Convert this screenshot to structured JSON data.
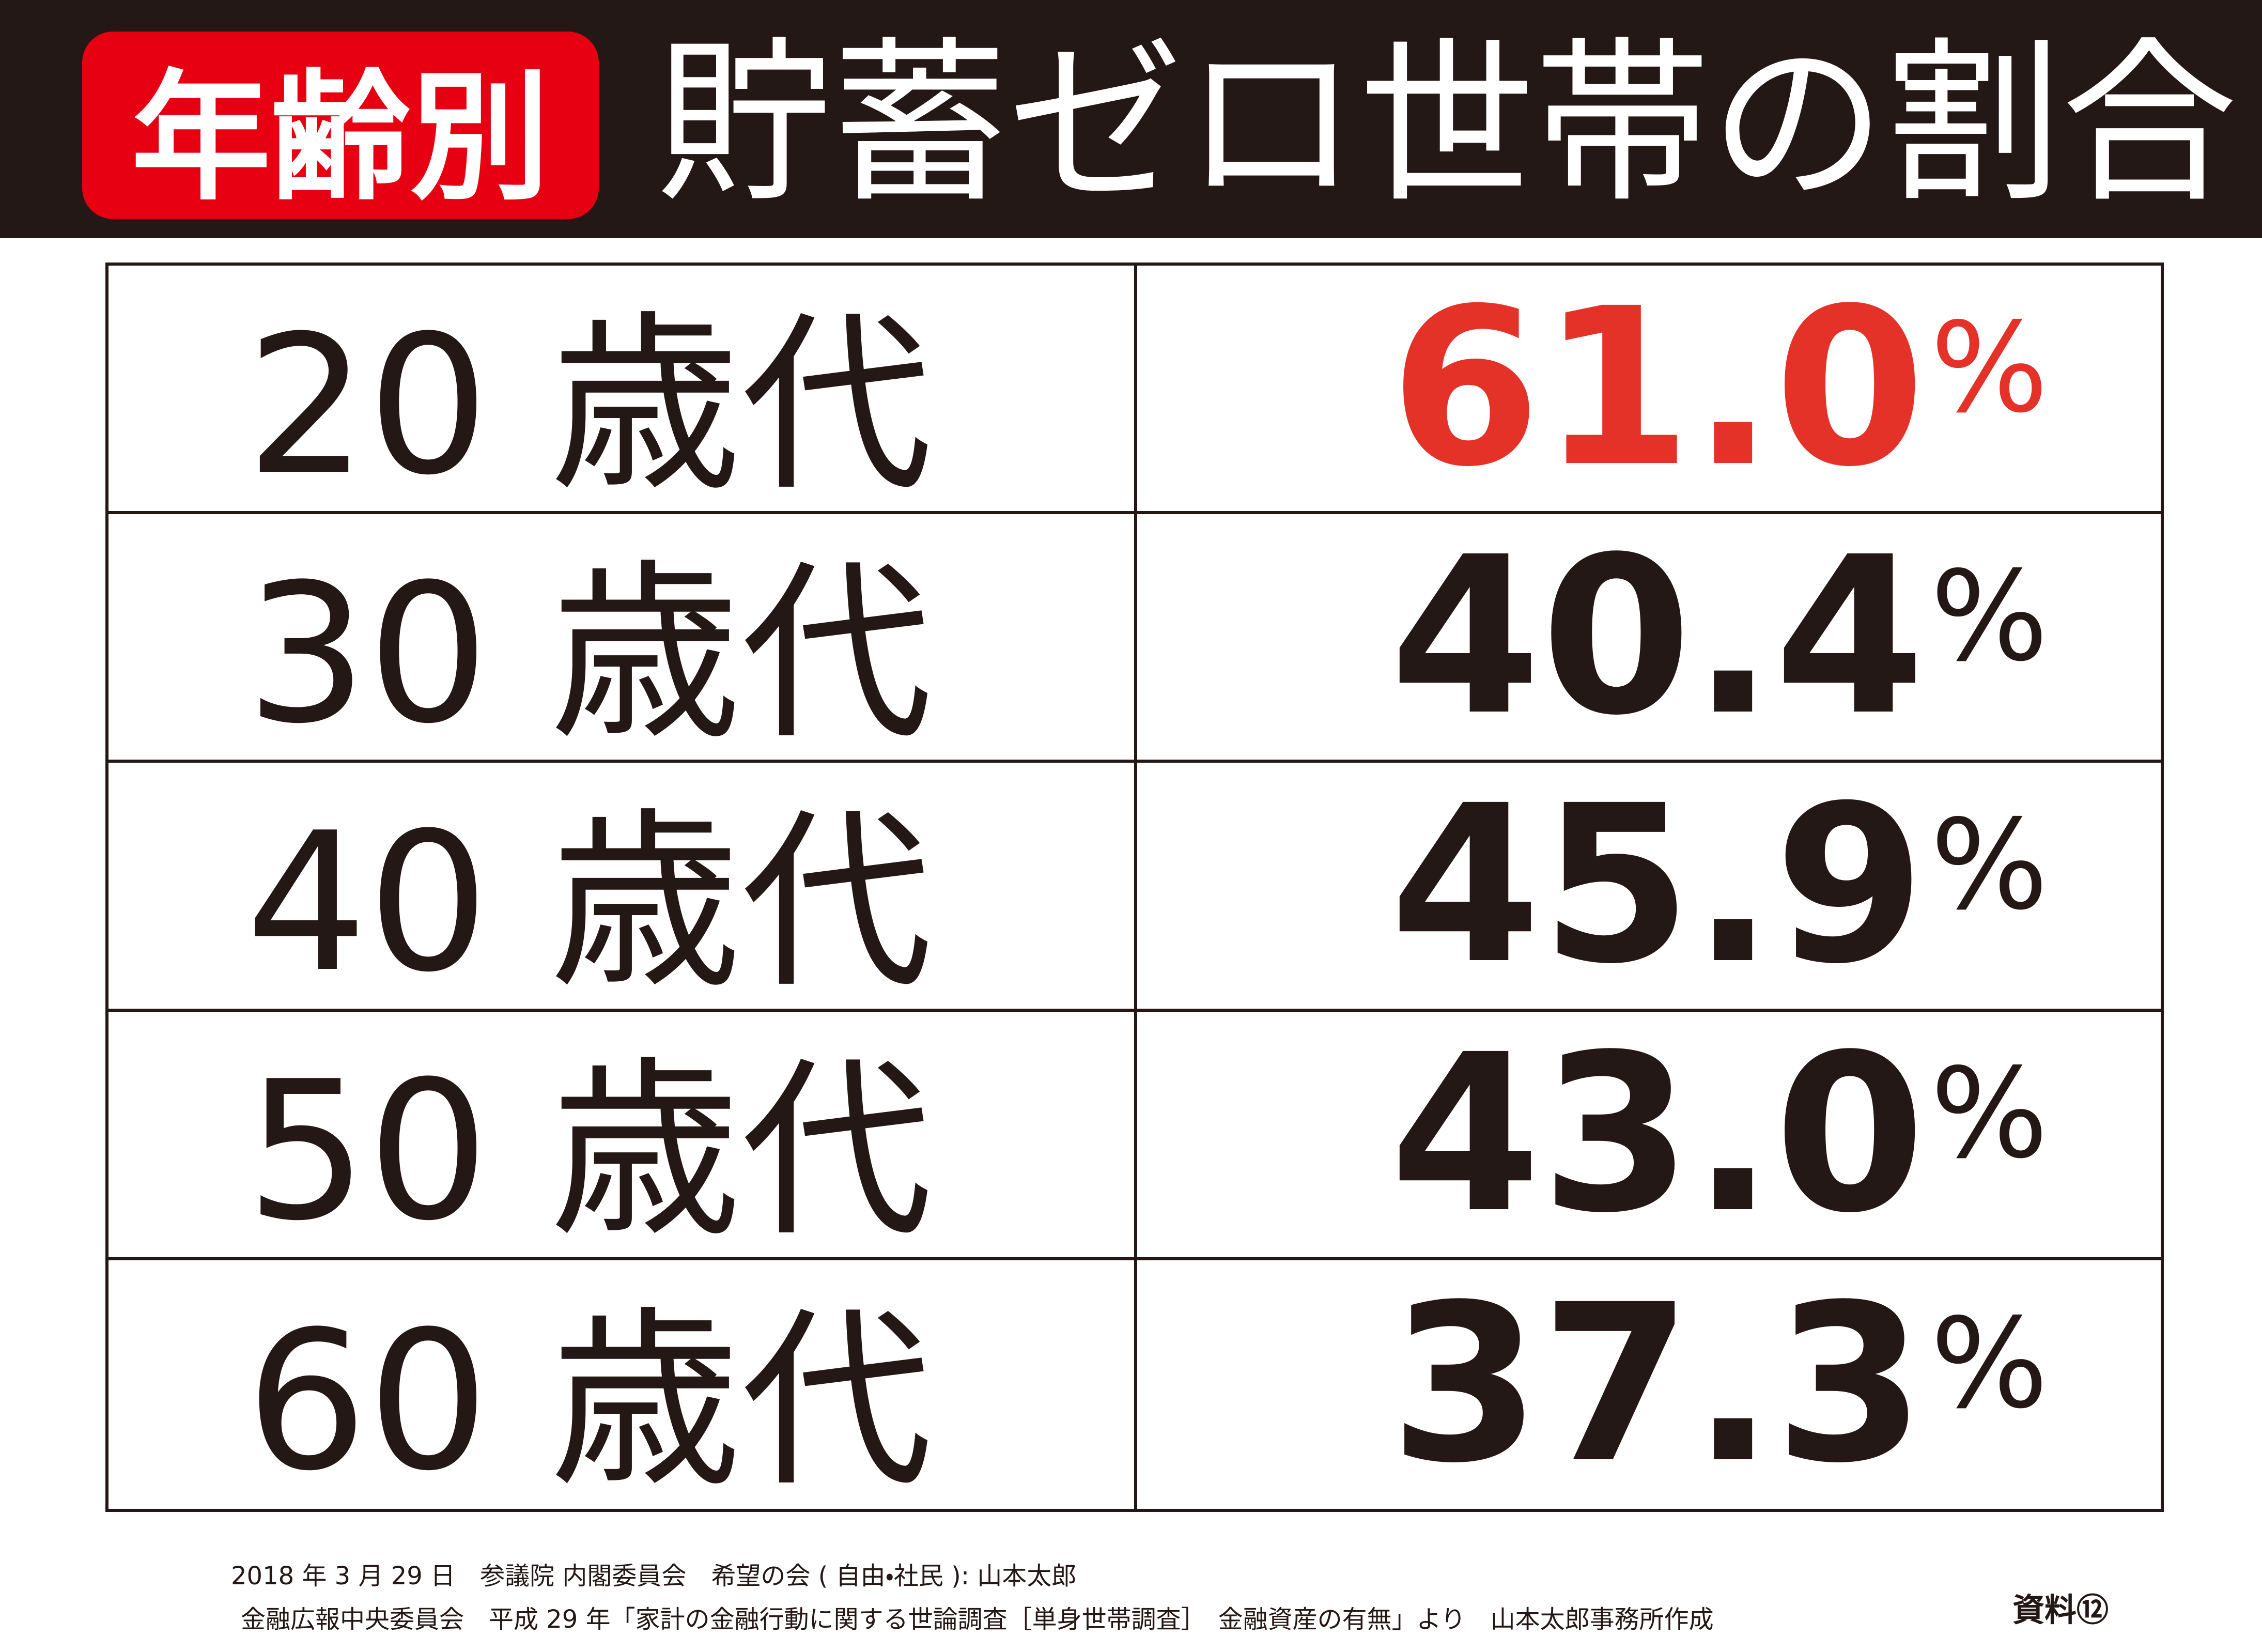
{
  "header": {
    "badge": "年齢別",
    "title": "貯蓄ゼロ世帯の割合"
  },
  "table": {
    "rows": [
      {
        "age": "20 歳代",
        "value": "61.0",
        "unit": "%"
      },
      {
        "age": "30 歳代",
        "value": "40.4",
        "unit": "%"
      },
      {
        "age": "40 歳代",
        "value": "45.9",
        "unit": "%"
      },
      {
        "age": "50 歳代",
        "value": "43.0",
        "unit": "%"
      },
      {
        "age": "60 歳代",
        "value": "37.3",
        "unit": "%"
      }
    ],
    "highlight_color": "#e53228"
  },
  "footer": {
    "lines": [
      "2018 年 3 月 29 日　参議院 内閣委員会　希望の会 ( 自由・社民 ): 山本太郎",
      "金融広報中央委員会　平成 29 年「家計の金融行動に関する世論調査［単身世帯調査］　金融資産の有無」より　山本太郎事務所作成"
    ],
    "note": "資料⑫"
  }
}
